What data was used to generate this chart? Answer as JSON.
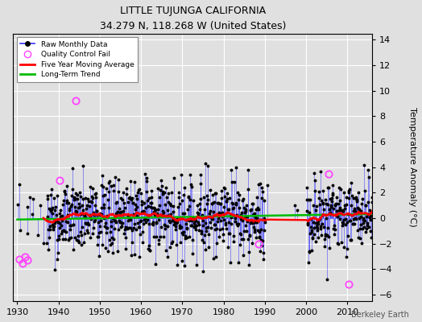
{
  "title": "LITTLE TUJUNGA CALIFORNIA",
  "subtitle": "34.279 N, 118.268 W (United States)",
  "ylabel": "Temperature Anomaly (°C)",
  "credit": "Berkeley Earth",
  "xlim": [
    1929,
    2016
  ],
  "ylim": [
    -6.5,
    14.5
  ],
  "yticks": [
    -6,
    -4,
    -2,
    0,
    2,
    4,
    6,
    8,
    10,
    12,
    14
  ],
  "xticks": [
    1930,
    1940,
    1950,
    1960,
    1970,
    1980,
    1990,
    2000,
    2010
  ],
  "raw_color": "#3333ff",
  "trend_color": "#00bb00",
  "moving_avg_color": "#ff0000",
  "qc_color": "#ff44ff",
  "background_color": "#e0e0e0",
  "grid_color": "#ffffff",
  "seed": 42
}
